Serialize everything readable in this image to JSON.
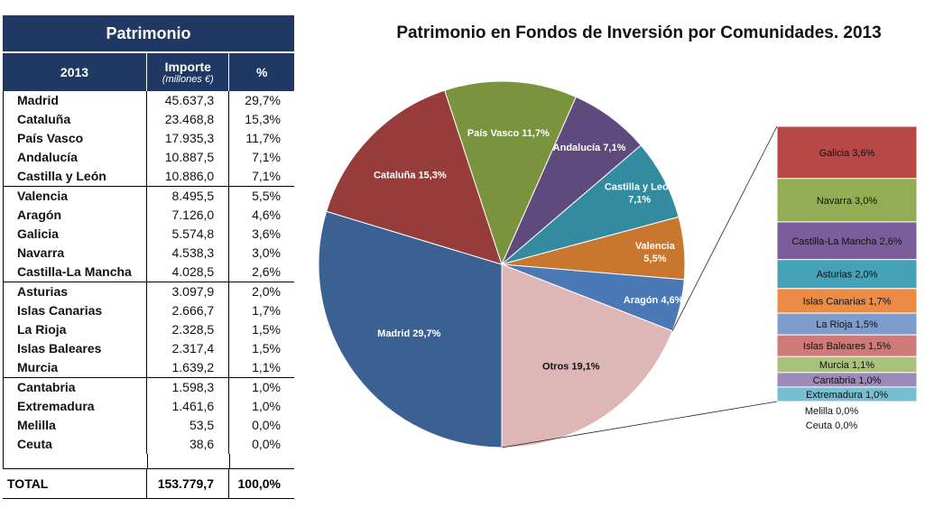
{
  "table": {
    "title": "Patrimonio",
    "headers": {
      "year": "2013",
      "importe": "Importe",
      "importe_unit": "(millones €)",
      "pct": "%"
    },
    "groups": [
      [
        {
          "name": "Madrid",
          "importe": "45.637,3",
          "pct": "29,7%"
        },
        {
          "name": "Cataluña",
          "importe": "23.468,8",
          "pct": "15,3%"
        },
        {
          "name": "País Vasco",
          "importe": "17.935,3",
          "pct": "11,7%"
        },
        {
          "name": "Andalucía",
          "importe": "10.887,5",
          "pct": "7,1%"
        },
        {
          "name": "Castilla y León",
          "importe": "10.886,0",
          "pct": "7,1%"
        }
      ],
      [
        {
          "name": "Valencia",
          "importe": "8.495,5",
          "pct": "5,5%"
        },
        {
          "name": "Aragón",
          "importe": "7.126,0",
          "pct": "4,6%"
        },
        {
          "name": "Galicia",
          "importe": "5.574,8",
          "pct": "3,6%"
        },
        {
          "name": "Navarra",
          "importe": "4.538,3",
          "pct": "3,0%"
        },
        {
          "name": "Castilla-La Mancha",
          "importe": "4.028,5",
          "pct": "2,6%"
        }
      ],
      [
        {
          "name": "Asturias",
          "importe": "3.097,9",
          "pct": "2,0%"
        },
        {
          "name": "Islas Canarias",
          "importe": "2.666,7",
          "pct": "1,7%"
        },
        {
          "name": "La Rioja",
          "importe": "2.328,5",
          "pct": "1,5%"
        },
        {
          "name": "Islas Baleares",
          "importe": "2.317,4",
          "pct": "1,5%"
        },
        {
          "name": "Murcia",
          "importe": "1.639,2",
          "pct": "1,1%"
        }
      ],
      [
        {
          "name": "Cantabria",
          "importe": "1.598,3",
          "pct": "1,0%"
        },
        {
          "name": "Extremadura",
          "importe": "1.461,6",
          "pct": "1,0%"
        },
        {
          "name": "Melilla",
          "importe": "53,5",
          "pct": "0,0%"
        },
        {
          "name": "Ceuta",
          "importe": "38,6",
          "pct": "0,0%"
        }
      ]
    ],
    "total": {
      "label": "TOTAL",
      "importe": "153.779,7",
      "pct": "100,0%"
    }
  },
  "colors": {
    "header_bg": "#1f3864"
  },
  "chart_data": {
    "type": "pie",
    "title": "Patrimonio en Fondos de Inversión por Comunidades. 2013",
    "slices": [
      {
        "name": "Madrid",
        "label": "Madrid 29,7%",
        "value": 29.7,
        "color": "#3b6192"
      },
      {
        "name": "Cataluña",
        "label": "Cataluña 15,3%",
        "value": 15.3,
        "color": "#963d3b"
      },
      {
        "name": "País Vasco",
        "label": "País Vasco 11,7%",
        "value": 11.7,
        "color": "#7a943d"
      },
      {
        "name": "Andalucía",
        "label": "Andalucía 7,1%",
        "value": 7.1,
        "color": "#5e4a7c"
      },
      {
        "name": "Castilla y León",
        "label": [
          "Castilla y León",
          "7,1%"
        ],
        "value": 7.1,
        "color": "#338ba0"
      },
      {
        "name": "Valencia",
        "label": [
          "Valencia",
          "5,5%"
        ],
        "value": 5.5,
        "color": "#c9762f"
      },
      {
        "name": "Aragón",
        "label": "Aragón 4,6%",
        "value": 4.6,
        "color": "#4a79b6"
      },
      {
        "name": "Otros",
        "label": "Otros 19,1%",
        "value": 19.1,
        "color": "#ddb6b5"
      }
    ],
    "breakdown": {
      "of": "Otros",
      "items": [
        {
          "name": "Galicia",
          "label": "Galicia 3,6%",
          "value": 3.6,
          "color": "#b84845"
        },
        {
          "name": "Navarra",
          "label": "Navarra 3,0%",
          "value": 3.0,
          "color": "#93ad55"
        },
        {
          "name": "Castilla-La Mancha",
          "label": "Castilla-La Mancha 2,6%",
          "value": 2.6,
          "color": "#7b5d9c"
        },
        {
          "name": "Asturias",
          "label": "Asturias 2,0%",
          "value": 2.0,
          "color": "#45a1b6"
        },
        {
          "name": "Islas Canarias",
          "label": "Islas Canarias 1,7%",
          "value": 1.7,
          "color": "#ec8b45"
        },
        {
          "name": "La Rioja",
          "label": "La Rioja 1,5%",
          "value": 1.5,
          "color": "#7f9dcc"
        },
        {
          "name": "Islas Baleares",
          "label": "Islas Baleares 1,5%",
          "value": 1.5,
          "color": "#cf7a78"
        },
        {
          "name": "Murcia",
          "label": "Murcia 1,1%",
          "value": 1.1,
          "color": "#a8c27c"
        },
        {
          "name": "Cantabria",
          "label": "Cantabria 1,0%",
          "value": 1.0,
          "color": "#9d8ab9"
        },
        {
          "name": "Extremadura",
          "label": "Extremadura 1,0%",
          "value": 1.0,
          "color": "#75bfd1"
        },
        {
          "name": "Melilla",
          "label": "Melilla 0,0%",
          "value": 0.0,
          "color": "#ffffff"
        },
        {
          "name": "Ceuta",
          "label": "Ceuta 0,0%",
          "value": 0.0,
          "color": "#ffffff"
        }
      ]
    }
  }
}
